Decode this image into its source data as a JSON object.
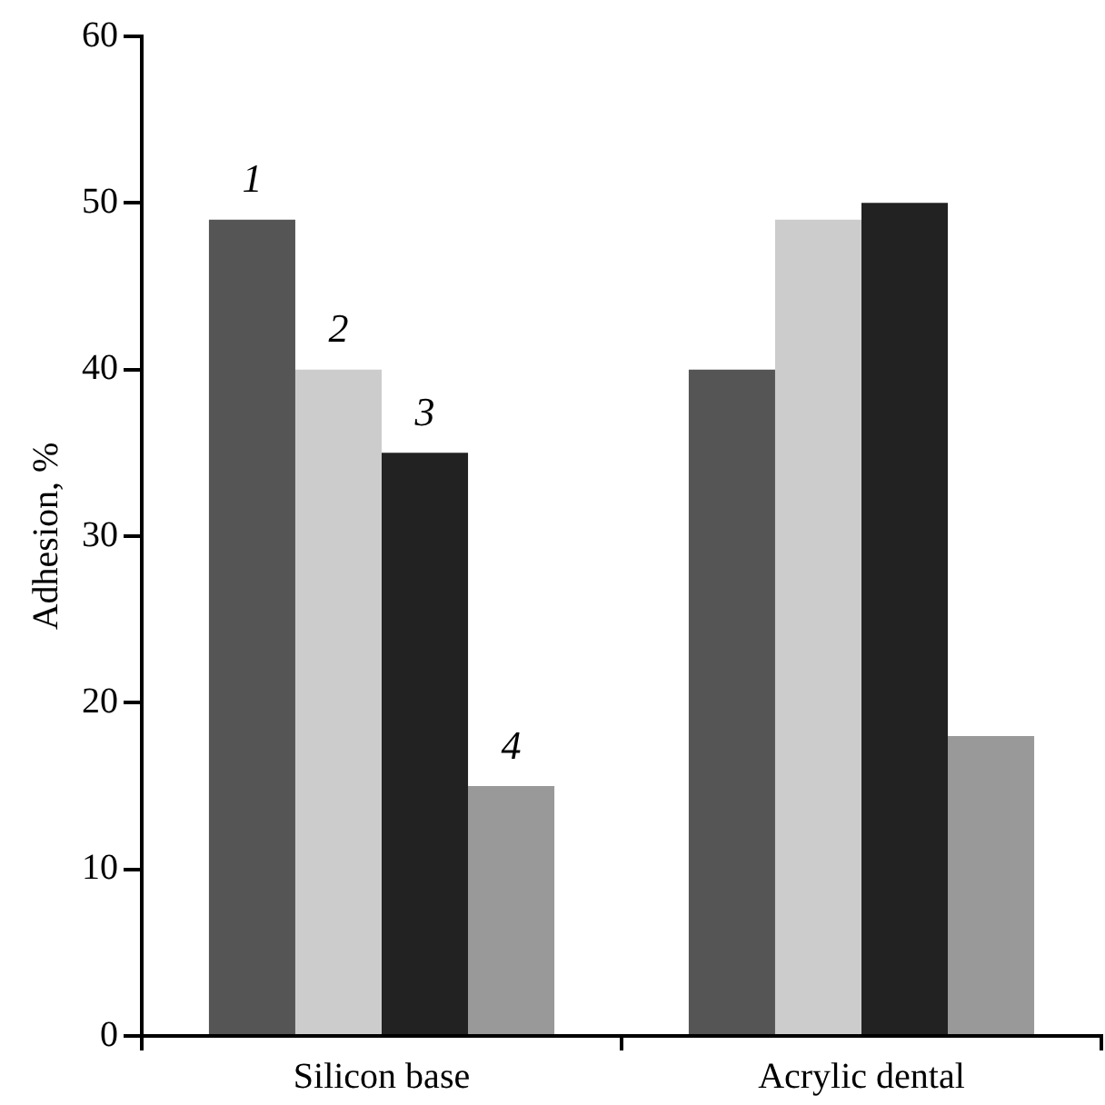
{
  "chart_data": {
    "type": "bar",
    "ylabel": "Adhesion, %",
    "categories": [
      "Silicon base",
      "Acrylic dental"
    ],
    "series": [
      {
        "name": "1",
        "color": "#555555",
        "values": [
          49,
          40
        ]
      },
      {
        "name": "2",
        "color": "#cccccc",
        "values": [
          40,
          49
        ]
      },
      {
        "name": "3",
        "color": "#222222",
        "values": [
          35,
          50
        ]
      },
      {
        "name": "4",
        "color": "#999999",
        "values": [
          15,
          18
        ]
      }
    ],
    "ylim": [
      0,
      60
    ],
    "yticks": [
      0,
      10,
      20,
      30,
      40,
      50,
      60
    ],
    "grid": false,
    "legend": false
  }
}
